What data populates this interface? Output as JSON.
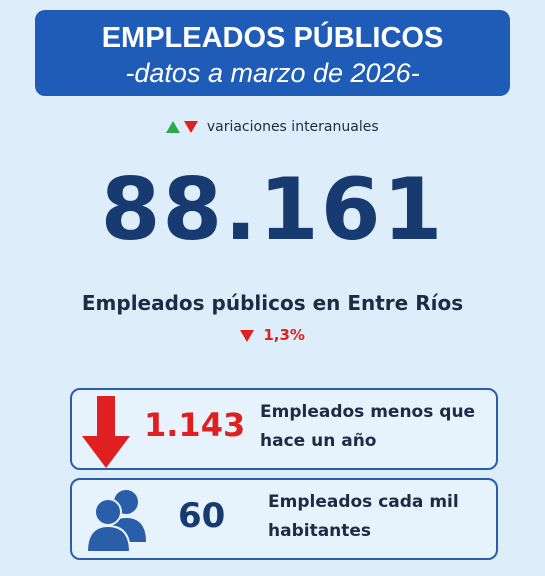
{
  "header": {
    "title": "EMPLEADOS PÚBLICOS",
    "subtitle": "-datos a marzo de 2026-"
  },
  "legend": {
    "label": "variaciones interanuales"
  },
  "headline": {
    "value": "88.161",
    "label": "Empleados públicos en Entre Ríos",
    "change": "1,3%"
  },
  "stats": [
    {
      "value": "1.143",
      "lines": [
        "Empleados menos que",
        "hace un año"
      ]
    },
    {
      "value": "60",
      "lines": [
        "Empleados cada mil",
        "habitantes"
      ]
    }
  ]
}
